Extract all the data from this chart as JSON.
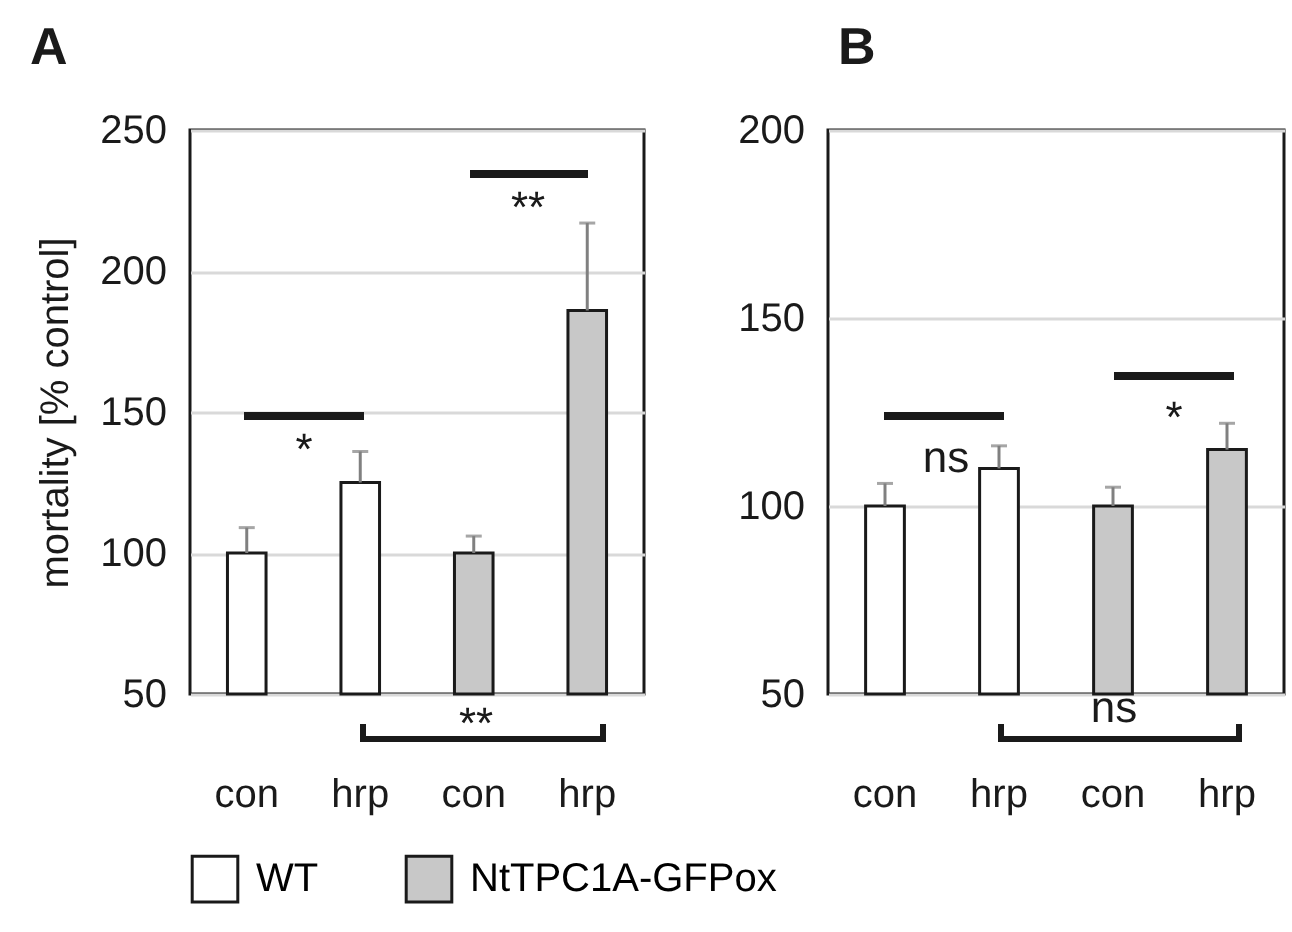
{
  "chart_data": [
    {
      "type": "bar",
      "title": "A",
      "ylabel": "mortality [% control]",
      "categories": [
        "con",
        "hrp",
        "con",
        "hrp"
      ],
      "series": [
        {
          "name": "WT",
          "color": "#ffffff",
          "values": [
            100,
            125,
            null,
            null
          ],
          "errors": [
            [
              100,
              109
            ],
            [
              125,
              136
            ],
            null,
            null
          ]
        },
        {
          "name": "NtTPC1A-GFPox",
          "color": "#c8c8c8",
          "values": [
            null,
            null,
            100,
            186
          ],
          "errors": [
            null,
            null,
            [
              100,
              106
            ],
            [
              186,
              217
            ]
          ]
        }
      ],
      "ylim": [
        50,
        250
      ],
      "yticks": [
        50,
        100,
        150,
        200,
        250
      ],
      "grid": "y",
      "legend": "bottom",
      "annotations": [
        "*",
        "**",
        "**"
      ]
    },
    {
      "type": "bar",
      "title": "B",
      "categories": [
        "con",
        "hrp",
        "con",
        "hrp"
      ],
      "series": [
        {
          "name": "WT",
          "color": "#ffffff",
          "values": [
            100,
            110,
            null,
            null
          ],
          "errors": [
            [
              100,
              106
            ],
            [
              110,
              116
            ],
            null,
            null
          ]
        },
        {
          "name": "NtTPC1A-GFPox",
          "color": "#c8c8c8",
          "values": [
            null,
            null,
            100,
            115
          ],
          "errors": [
            null,
            null,
            [
              100,
              105
            ],
            [
              115,
              122
            ]
          ]
        }
      ],
      "ylim": [
        50,
        200
      ],
      "yticks": [
        50,
        100,
        150,
        200
      ],
      "grid": "y",
      "legend": "bottom",
      "annotations": [
        "ns",
        "*",
        "ns"
      ]
    }
  ]
}
